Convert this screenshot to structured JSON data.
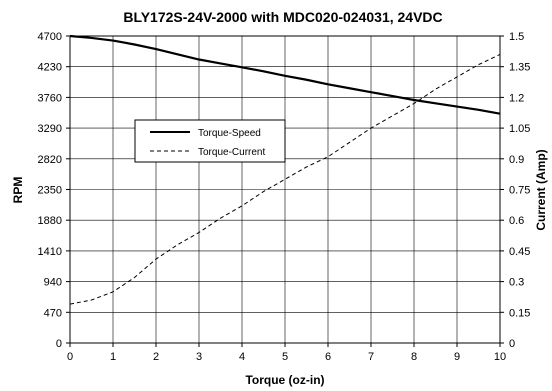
{
  "chart_data": {
    "type": "line",
    "title": "BLY172S-24V-2000 with MDC020-024031, 24VDC",
    "xlabel": "Torque (oz-in)",
    "ylabel_left": "RPM",
    "ylabel_right": "Current (Amp)",
    "xlim": [
      0,
      10
    ],
    "ylim_left": [
      0,
      4700
    ],
    "ylim_right": [
      0,
      1.5
    ],
    "x_ticks": [
      "0",
      "1",
      "2",
      "3",
      "4",
      "5",
      "6",
      "7",
      "8",
      "9",
      "10"
    ],
    "y_ticks_left": [
      "0",
      "470",
      "940",
      "1410",
      "1880",
      "2350",
      "2820",
      "3290",
      "3760",
      "4230",
      "4700"
    ],
    "y_ticks_right": [
      "0",
      "0.15",
      "0.3",
      "0.45",
      "0.6",
      "0.75",
      "0.9",
      "1.05",
      "1.2",
      "1.35",
      "1.5"
    ],
    "grid": true,
    "legend_position": "upper-left",
    "series": [
      {
        "name": "Torque-Speed",
        "axis": "left",
        "style": "solid",
        "x": [
          0,
          0.5,
          1,
          1.5,
          2,
          2.5,
          3,
          3.5,
          4,
          4.5,
          5,
          5.5,
          6,
          6.5,
          7,
          7.5,
          8,
          8.5,
          9,
          9.5,
          10
        ],
        "y": [
          4700,
          4670,
          4630,
          4570,
          4500,
          4420,
          4340,
          4280,
          4220,
          4160,
          4090,
          4030,
          3960,
          3900,
          3840,
          3780,
          3720,
          3670,
          3620,
          3570,
          3510
        ]
      },
      {
        "name": "Torque-Current",
        "axis": "right",
        "style": "dashed",
        "x": [
          0,
          0.5,
          1,
          1.5,
          2,
          2.5,
          3,
          3.5,
          4,
          4.5,
          5,
          5.5,
          6,
          6.5,
          7,
          7.5,
          8,
          8.5,
          9,
          9.5,
          10
        ],
        "y": [
          0.19,
          0.21,
          0.25,
          0.32,
          0.41,
          0.48,
          0.54,
          0.61,
          0.67,
          0.74,
          0.8,
          0.86,
          0.91,
          0.98,
          1.05,
          1.11,
          1.17,
          1.24,
          1.3,
          1.36,
          1.41
        ]
      }
    ]
  },
  "colors": {
    "background": "#ffffff",
    "grid": "#000000",
    "line": "#000000"
  }
}
